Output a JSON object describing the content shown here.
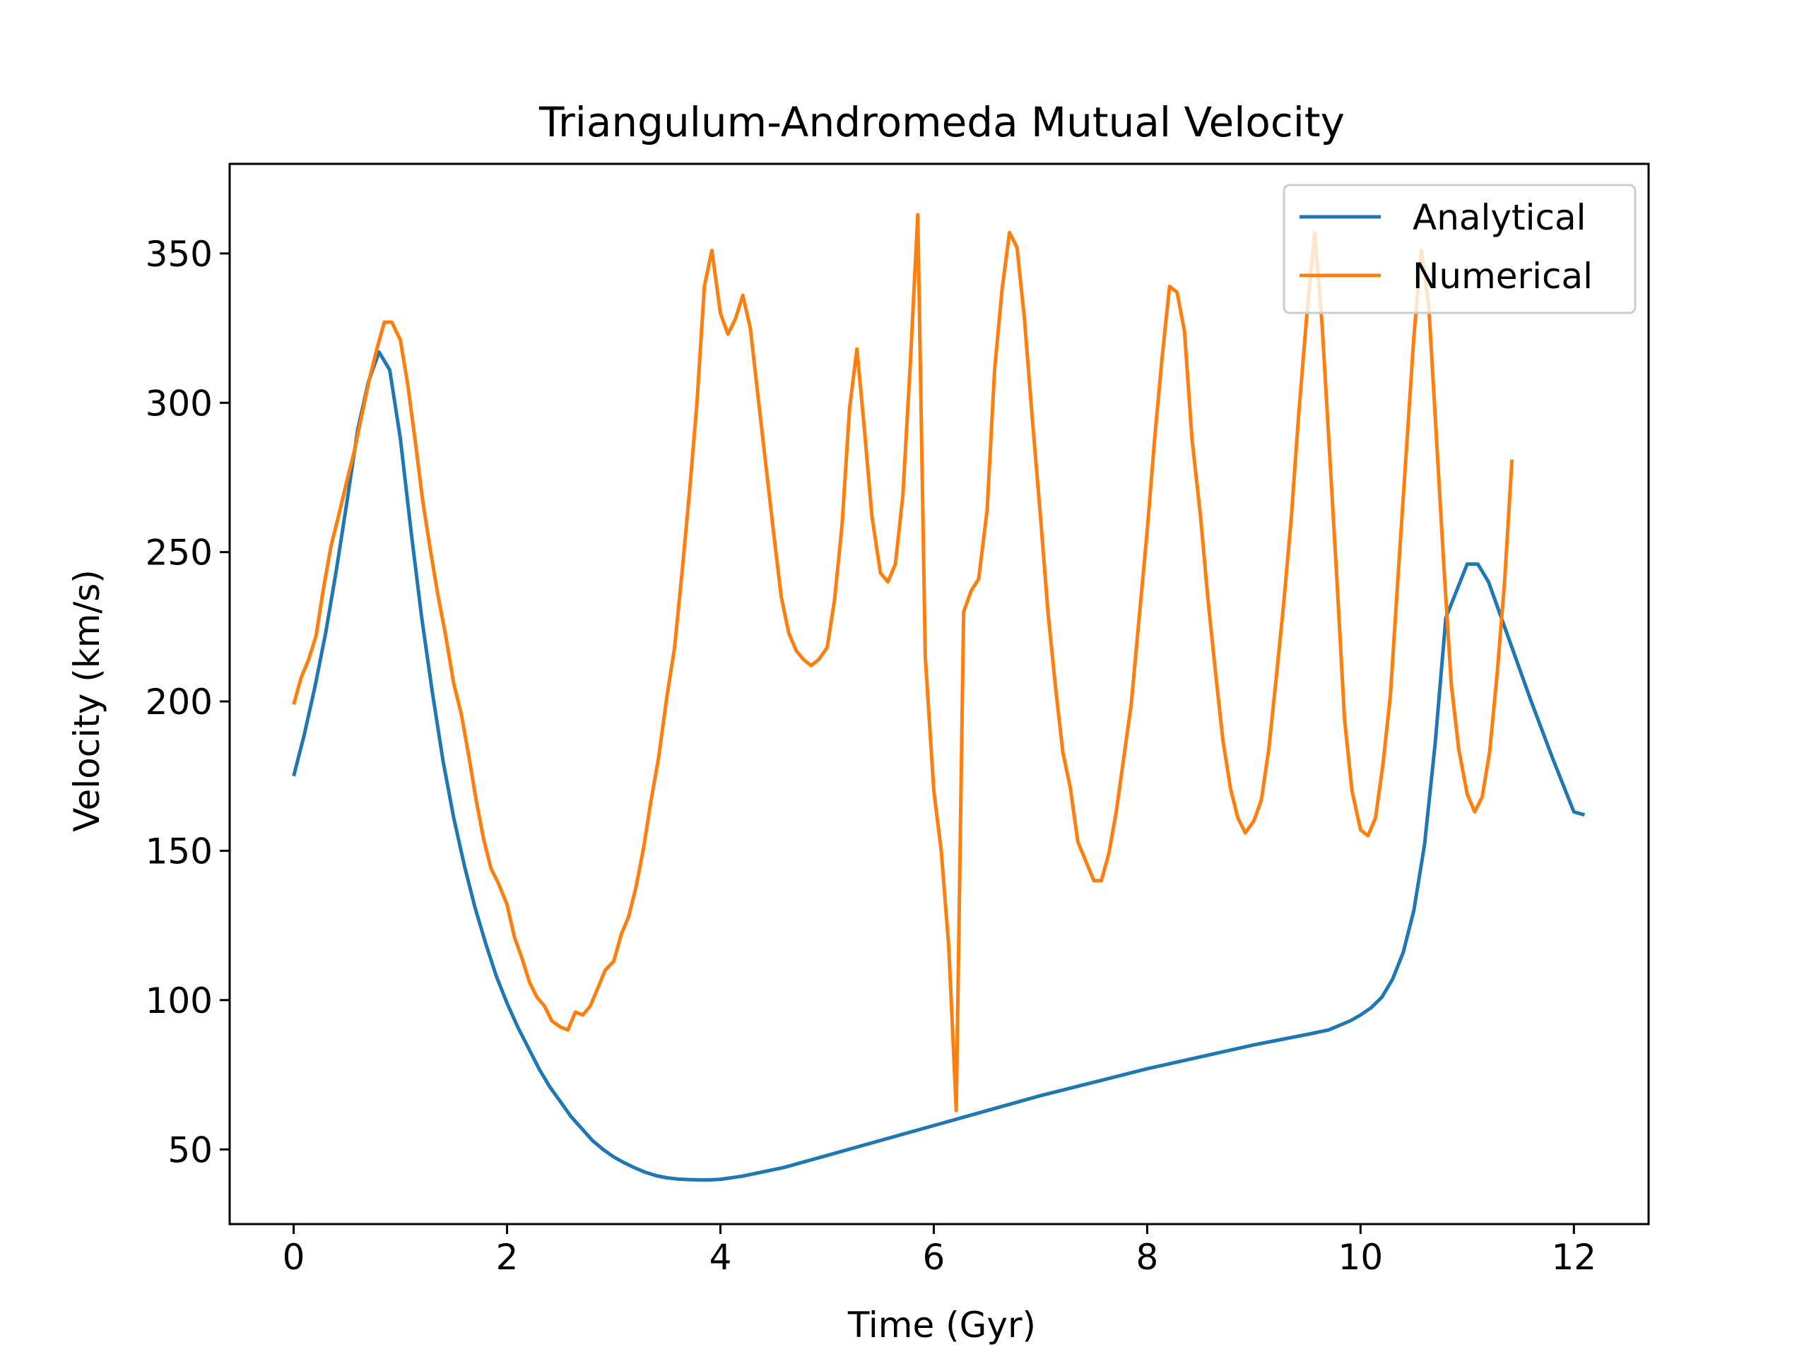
{
  "chart_data": {
    "type": "line",
    "title": "Triangulum-Andromeda Mutual Velocity",
    "xlabel": "Time (Gyr)",
    "ylabel": "Velocity (km/s)",
    "xlim": [
      -0.6,
      12.7
    ],
    "ylim": [
      25,
      380
    ],
    "xticks": [
      0,
      2,
      4,
      6,
      8,
      10,
      12
    ],
    "yticks": [
      50,
      100,
      150,
      200,
      250,
      300,
      350
    ],
    "grid": false,
    "legend_position": "upper right",
    "series": [
      {
        "name": "Analytical",
        "color": "#1f77b4",
        "x": [
          0,
          0.1,
          0.2,
          0.3,
          0.4,
          0.5,
          0.6,
          0.7,
          0.8,
          0.9,
          1.0,
          1.1,
          1.2,
          1.3,
          1.4,
          1.5,
          1.6,
          1.7,
          1.8,
          1.9,
          2.0,
          2.1,
          2.2,
          2.3,
          2.4,
          2.5,
          2.6,
          2.7,
          2.8,
          2.9,
          3.0,
          3.1,
          3.2,
          3.3,
          3.4,
          3.5,
          3.6,
          3.7,
          3.8,
          3.9,
          4.0,
          4.2,
          4.4,
          4.6,
          4.8,
          5.0,
          5.5,
          6.0,
          6.5,
          7.0,
          7.5,
          8.0,
          8.5,
          9.0,
          9.5,
          9.7,
          9.8,
          9.9,
          10.0,
          10.1,
          10.2,
          10.3,
          10.4,
          10.5,
          10.6,
          10.7,
          10.8,
          10.9,
          11.0,
          11.1,
          11.2,
          11.3,
          11.4,
          11.6,
          11.8,
          12.0,
          12.1
        ],
        "values": [
          175,
          189,
          205,
          223,
          244,
          267,
          291,
          307,
          317,
          311,
          288,
          257,
          228,
          203,
          180,
          161,
          145,
          131,
          119,
          108,
          99,
          91,
          84,
          77,
          71,
          66,
          61,
          57,
          53,
          50,
          47.5,
          45.5,
          43.8,
          42.3,
          41.2,
          40.5,
          40.1,
          39.9,
          39.8,
          39.8,
          40.0,
          41,
          42.5,
          44,
          46,
          48,
          53,
          58,
          63,
          68,
          72.5,
          77,
          81,
          85,
          88.5,
          90,
          91.5,
          93,
          95,
          97.5,
          101,
          107,
          116,
          130,
          152,
          186,
          228,
          237,
          246,
          246,
          240,
          230,
          220,
          200,
          181,
          163,
          162
        ]
      },
      {
        "name": "Numerical",
        "color": "#ff7f0e",
        "x": [
          0,
          0.07,
          0.14,
          0.21,
          0.28,
          0.35,
          0.42,
          0.5,
          0.57,
          0.64,
          0.71,
          0.78,
          0.85,
          0.92,
          1.0,
          1.07,
          1.14,
          1.21,
          1.28,
          1.35,
          1.42,
          1.5,
          1.57,
          1.64,
          1.71,
          1.78,
          1.85,
          1.92,
          2.0,
          2.07,
          2.14,
          2.21,
          2.28,
          2.35,
          2.42,
          2.5,
          2.57,
          2.64,
          2.71,
          2.78,
          2.85,
          2.92,
          3.0,
          3.07,
          3.14,
          3.21,
          3.28,
          3.35,
          3.42,
          3.5,
          3.57,
          3.64,
          3.71,
          3.78,
          3.85,
          3.92,
          4.0,
          4.07,
          4.14,
          4.21,
          4.28,
          4.35,
          4.42,
          4.5,
          4.57,
          4.64,
          4.71,
          4.78,
          4.85,
          4.92,
          5.0,
          5.07,
          5.14,
          5.21,
          5.28,
          5.35,
          5.42,
          5.5,
          5.57,
          5.64,
          5.71,
          5.78,
          5.85,
          5.92,
          6.0,
          6.07,
          6.14,
          6.21,
          6.28,
          6.35,
          6.42,
          6.5,
          6.57,
          6.64,
          6.71,
          6.78,
          6.85,
          6.92,
          7.0,
          7.07,
          7.14,
          7.21,
          7.28,
          7.35,
          7.42,
          7.5,
          7.57,
          7.64,
          7.71,
          7.78,
          7.85,
          7.92,
          8.0,
          8.07,
          8.14,
          8.21,
          8.28,
          8.35,
          8.42,
          8.5,
          8.57,
          8.64,
          8.71,
          8.78,
          8.85,
          8.92,
          9.0,
          9.07,
          9.14,
          9.21,
          9.28,
          9.35,
          9.42,
          9.5,
          9.57,
          9.64,
          9.71,
          9.78,
          9.85,
          9.92,
          10.0,
          10.07,
          10.14,
          10.21,
          10.28,
          10.35,
          10.42,
          10.5,
          10.57,
          10.64,
          10.71,
          10.78,
          10.85,
          10.92,
          11.0,
          11.07,
          11.14,
          11.21,
          11.28,
          11.35,
          11.42
        ],
        "values": [
          199,
          208,
          214,
          222,
          238,
          252,
          262,
          274,
          284,
          296,
          308,
          318,
          327,
          327,
          321,
          306,
          287,
          267,
          251,
          236,
          223,
          206,
          196,
          182,
          167,
          154,
          144,
          139,
          132,
          121,
          114,
          106,
          101,
          98,
          93,
          91,
          90,
          96,
          95,
          98,
          104,
          110,
          113,
          122,
          128,
          138,
          151,
          167,
          181,
          202,
          218,
          243,
          270,
          300,
          339,
          351,
          330,
          323,
          328,
          336,
          325,
          303,
          281,
          256,
          235,
          223,
          217,
          214,
          212,
          214,
          218,
          234,
          259,
          298,
          318,
          291,
          262,
          243,
          240,
          246,
          269,
          313,
          363,
          215,
          170,
          150,
          118,
          63,
          230,
          237,
          241,
          264,
          311,
          338,
          357,
          352,
          328,
          296,
          262,
          230,
          205,
          183,
          171,
          153,
          147,
          140,
          140,
          149,
          163,
          181,
          199,
          226,
          257,
          288,
          315,
          339,
          337,
          324,
          288,
          262,
          234,
          210,
          187,
          171,
          161,
          156,
          160,
          167,
          184,
          208,
          233,
          261,
          296,
          331,
          357,
          326,
          283,
          240,
          194,
          170,
          157,
          155,
          161,
          179,
          202,
          241,
          279,
          322,
          351,
          332,
          289,
          246,
          206,
          184,
          169,
          163,
          168,
          183,
          209,
          240,
          281
        ]
      }
    ]
  }
}
